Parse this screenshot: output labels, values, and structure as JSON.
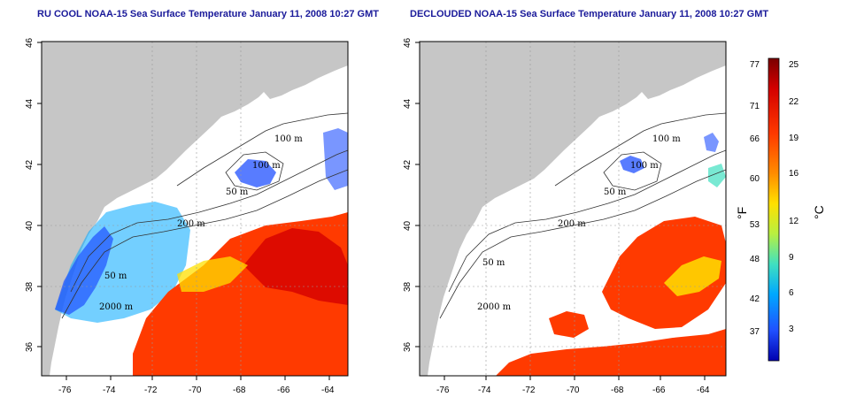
{
  "titles": {
    "left": "RU COOL NOAA-15 Sea Surface Temperature January 11, 2008 10:27 GMT",
    "right": "DECLOUDED NOAA-15 Sea Surface Temperature January 11, 2008 10:27 GMT"
  },
  "axes": {
    "lon_ticks": [
      "-76",
      "-74",
      "-72",
      "-70",
      "-68",
      "-66",
      "-64"
    ],
    "lat_ticks": [
      "36",
      "38",
      "40",
      "42",
      "44",
      "46"
    ]
  },
  "contour_labels": {
    "left": [
      "100 m",
      "100 m",
      "50 m",
      "200 m",
      "50 m",
      "2000 m"
    ],
    "right": [
      "100 m",
      "100 m",
      "50 m",
      "200 m",
      "50 m",
      "2000 m"
    ]
  },
  "colorbar": {
    "fahrenheit_labels": [
      "77",
      "71",
      "66",
      "60",
      "53",
      "48",
      "42",
      "37"
    ],
    "celsius_labels": [
      "25",
      "22",
      "19",
      "16",
      "12",
      "9",
      "6",
      "3"
    ],
    "f_unit": "°F",
    "c_unit": "°C",
    "colors": [
      "#7a0000",
      "#d40000",
      "#ff3a00",
      "#ff8c00",
      "#ffe000",
      "#b8f040",
      "#40e0c0",
      "#00a8ff",
      "#2050ff",
      "#0000b0"
    ]
  },
  "colors": {
    "land": "#c6c6c6",
    "ocean": "#ffffff",
    "title": "#1a1a9a"
  }
}
